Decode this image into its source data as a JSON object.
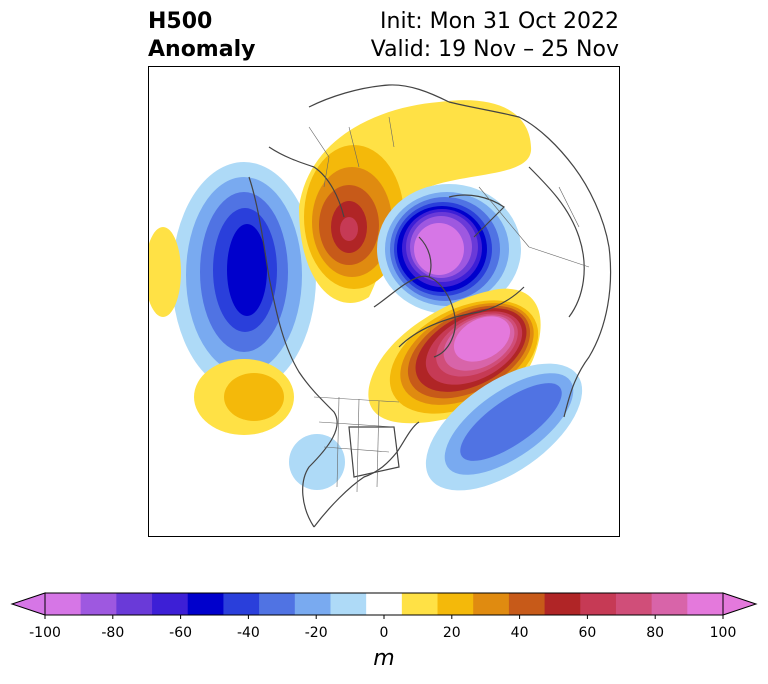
{
  "title": {
    "left_line1": "H500",
    "left_line2": "Anomaly",
    "right_line1": "Init: Mon 31 Oct 2022",
    "right_line2": "Valid: 19 Nov – 25 Nov"
  },
  "colorbar": {
    "unit": "m",
    "min": -100,
    "max": 100,
    "step": 10,
    "extend": "both",
    "tick_labels": [
      "-100",
      "-80",
      "-60",
      "-40",
      "-20",
      "0",
      "20",
      "40",
      "60",
      "80",
      "100"
    ],
    "tick_values": [
      -100,
      -80,
      -60,
      -40,
      -20,
      0,
      20,
      40,
      60,
      80,
      100
    ],
    "colors": [
      "#d676e6",
      "#9e58e0",
      "#6a3ad8",
      "#3d1fd6",
      "#0000cc",
      "#2a3fdb",
      "#5073e3",
      "#79aaf0",
      "#aedaf7",
      "#ffffff",
      "#ffe145",
      "#f4b90a",
      "#e08b10",
      "#c75a19",
      "#b02526",
      "#c63a55",
      "#d04e79",
      "#d864a9",
      "#e479dc"
    ],
    "under_color": "#d676e6",
    "over_color": "#e479dc"
  },
  "map": {
    "projection": "north-polar-stereographic",
    "features": "coastlines and country/state borders",
    "anomaly_centers": [
      {
        "region": "Arctic / northern Russia",
        "sign": "negative",
        "approx_m": -100
      },
      {
        "region": "Greenland / northeastern Canada",
        "sign": "positive",
        "approx_m": 100
      },
      {
        "region": "Scandinavia / Ural",
        "sign": "positive",
        "approx_m": 70
      },
      {
        "region": "Bering Sea / North Pacific",
        "sign": "negative",
        "approx_m": -65
      },
      {
        "region": "North Atlantic",
        "sign": "negative",
        "approx_m": -45
      },
      {
        "region": "Central North Pacific",
        "sign": "positive",
        "approx_m": 35
      },
      {
        "region": "Western Pacific",
        "sign": "positive",
        "approx_m": 15
      },
      {
        "region": "Southeastern USA",
        "sign": "negative",
        "approx_m": -15
      }
    ]
  }
}
